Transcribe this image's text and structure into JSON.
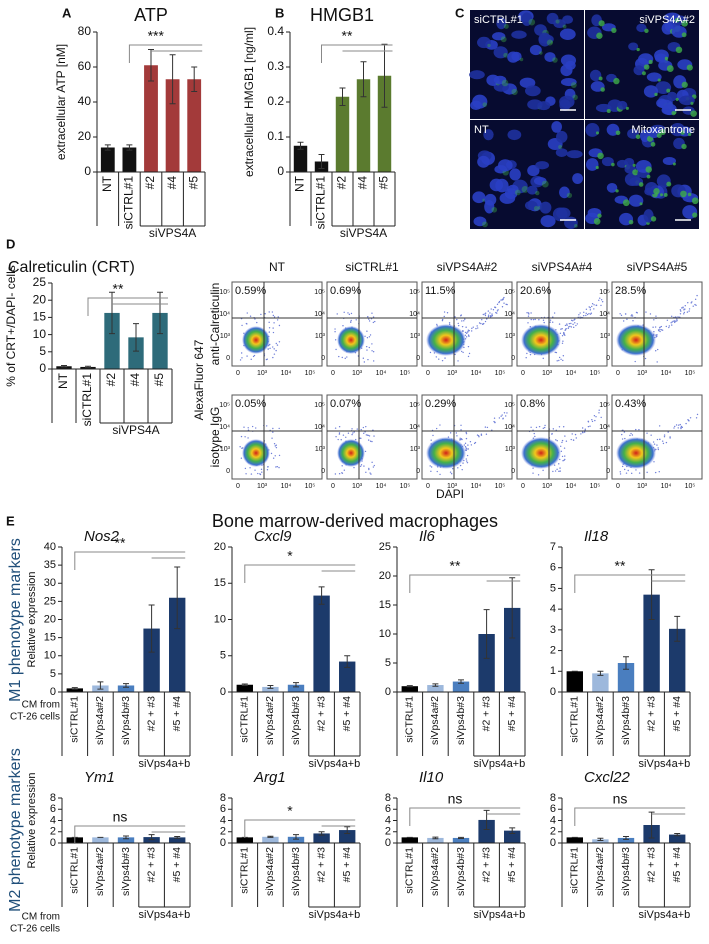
{
  "panels": [
    "A",
    "B",
    "C",
    "D",
    "E"
  ],
  "micrographs": {
    "labels": [
      "siCTRL#1",
      "siVPS4A#2",
      "NT",
      "Mitoxantrone"
    ]
  },
  "flow": {
    "columns": [
      "NT",
      "siCTRL#1",
      "siVPS4A#2",
      "siVPS4A#4",
      "siVPS4A#5"
    ],
    "rows": [
      "anti-Calreticulin",
      "isotype IgG"
    ],
    "ylabel": "AlexaFluor 647",
    "xlabel": "DAPI",
    "ticks": [
      "0",
      "10³",
      "10⁴",
      "10⁵"
    ],
    "percentages": [
      [
        "0.59%",
        "0.69%",
        "11.5%",
        "20.6%",
        "28.5%"
      ],
      [
        "0.05%",
        "0.07%",
        "0.29%",
        "0.8%",
        "0.43%"
      ]
    ]
  },
  "macrophages": {
    "title": "Bone marrow-derived macrophages",
    "rows": [
      "M1 phenotype markers",
      "M2 phenotype markers"
    ],
    "cm_label": [
      "CM from",
      "CT-26 cells"
    ]
  },
  "chart_data": [
    {
      "type": "bar",
      "title": "ATP",
      "ylabel": "extracellular ATP [nM]",
      "categories": [
        "NT",
        "siCTRL#1",
        "#2",
        "#4",
        "#5"
      ],
      "group_label": "siVPS4A",
      "values": [
        14,
        14,
        61,
        53,
        53
      ],
      "errors": [
        1.5,
        1.5,
        9,
        14,
        7
      ],
      "colors": [
        "#111111",
        "#111111",
        "#a33a3a",
        "#a33a3a",
        "#a33a3a"
      ],
      "ylim": [
        0,
        80
      ],
      "yticks": [
        0,
        20,
        40,
        60,
        80
      ],
      "annotation": "***"
    },
    {
      "type": "bar",
      "title": "HMGB1",
      "ylabel": "extracellular HMGB1 [ng/ml]",
      "categories": [
        "NT",
        "siCTRL#1",
        "#2",
        "#4",
        "#5"
      ],
      "group_label": "siVPS4A",
      "values": [
        0.075,
        0.03,
        0.215,
        0.265,
        0.275
      ],
      "errors": [
        0.01,
        0.02,
        0.025,
        0.05,
        0.09
      ],
      "colors": [
        "#111111",
        "#111111",
        "#5b7b2f",
        "#5b7b2f",
        "#5b7b2f"
      ],
      "ylim": [
        0,
        0.4
      ],
      "yticks": [
        0,
        0.1,
        0.2,
        0.3,
        0.4
      ],
      "annotation": "**"
    },
    {
      "type": "bar",
      "title": "Calreticulin (CRT)",
      "ylabel": "% of CRT+/DAPI- cells",
      "categories": [
        "NT",
        "siCTRL#1",
        "#2",
        "#4",
        "#5"
      ],
      "group_label": "siVPS4A",
      "values": [
        0.8,
        0.6,
        16.3,
        9.2,
        16.3
      ],
      "errors": [
        0.2,
        0.2,
        6,
        4,
        6
      ],
      "colors": [
        "#111111",
        "#111111",
        "#2e6b7a",
        "#2e6b7a",
        "#2e6b7a"
      ],
      "ylim": [
        0,
        25
      ],
      "yticks": [
        0,
        5,
        10,
        15,
        20,
        25
      ],
      "annotation": "**"
    },
    {
      "type": "bar",
      "title": "Nos2",
      "ylabel": "Relative expression",
      "categories": [
        "siCTRL#1",
        "siVps4a#2",
        "siVps4b#3",
        "#2 + #3",
        "#5 + #4"
      ],
      "group_label": "siVps4a+b",
      "values": [
        1,
        1.8,
        1.8,
        17.5,
        26
      ],
      "errors": [
        0.2,
        1,
        0.5,
        6.5,
        8.5
      ],
      "colors": [
        "#000000",
        "#9db8dc",
        "#4a7ebf",
        "#1c3a6b",
        "#1c3a6b"
      ],
      "ylim": [
        0,
        40
      ],
      "yticks": [
        0,
        5,
        10,
        15,
        20,
        25,
        30,
        35,
        40
      ],
      "annotation": "**"
    },
    {
      "type": "bar",
      "title": "Cxcl9",
      "categories": [
        "siCTRL#1",
        "siVps4a#2",
        "siVps4b#3",
        "#2 + #3",
        "#5 + #4"
      ],
      "group_label": "siVps4a+b",
      "values": [
        1,
        0.7,
        1,
        13.3,
        4.2
      ],
      "errors": [
        0.1,
        0.2,
        0.3,
        1.2,
        0.8
      ],
      "colors": [
        "#000000",
        "#9db8dc",
        "#4a7ebf",
        "#1c3a6b",
        "#1c3a6b"
      ],
      "ylim": [
        0,
        20
      ],
      "yticks": [
        0,
        5,
        10,
        15,
        20
      ],
      "annotation": "*"
    },
    {
      "type": "bar",
      "title": "Il6",
      "categories": [
        "siCTRL#1",
        "siVps4a#2",
        "siVps4b#3",
        "#2 + #3",
        "#5 + #4"
      ],
      "group_label": "siVps4a+b",
      "values": [
        1,
        1.2,
        1.8,
        10,
        14.5
      ],
      "errors": [
        0.1,
        0.2,
        0.3,
        4.2,
        5.2
      ],
      "colors": [
        "#000000",
        "#9db8dc",
        "#4a7ebf",
        "#1c3a6b",
        "#1c3a6b"
      ],
      "ylim": [
        0,
        25
      ],
      "yticks": [
        0,
        5,
        10,
        15,
        20,
        25
      ],
      "annotation": "**"
    },
    {
      "type": "bar",
      "title": "Il18",
      "categories": [
        "siCTRL#1",
        "siVps4a#2",
        "siVps4b#3",
        "#2 + #3",
        "#5 + #4"
      ],
      "group_label": "siVps4a+b",
      "values": [
        1,
        0.9,
        1.4,
        4.7,
        3.05
      ],
      "errors": [
        0,
        0.1,
        0.3,
        1.2,
        0.6
      ],
      "colors": [
        "#000000",
        "#9db8dc",
        "#4a7ebf",
        "#1c3a6b",
        "#1c3a6b"
      ],
      "ylim": [
        0,
        7
      ],
      "yticks": [
        0,
        1,
        2,
        3,
        4,
        5,
        6,
        7
      ],
      "annotation": "**"
    },
    {
      "type": "bar",
      "title": "Ym1",
      "ylabel": "Relative expression",
      "categories": [
        "siCTRL#1",
        "siVps4a#2",
        "siVps4b#3",
        "#2 + #3",
        "#5 + #4"
      ],
      "group_label": "siVps4a+b",
      "values": [
        1,
        1,
        1,
        1.05,
        1
      ],
      "errors": [
        0,
        0,
        0.25,
        0.45,
        0.15
      ],
      "colors": [
        "#000000",
        "#9db8dc",
        "#4a7ebf",
        "#1c3a6b",
        "#1c3a6b"
      ],
      "ylim": [
        0,
        8
      ],
      "yticks": [
        0,
        2,
        4,
        6,
        8
      ],
      "annotation": "ns"
    },
    {
      "type": "bar",
      "title": "Arg1",
      "categories": [
        "siCTRL#1",
        "siVps4a#2",
        "siVps4b#3",
        "#2 + #3",
        "#5 + #4"
      ],
      "group_label": "siVps4a+b",
      "values": [
        1,
        1.1,
        1.1,
        1.7,
        2.3
      ],
      "errors": [
        0,
        0.1,
        0.4,
        0.3,
        0.6
      ],
      "colors": [
        "#000000",
        "#9db8dc",
        "#4a7ebf",
        "#1c3a6b",
        "#1c3a6b"
      ],
      "ylim": [
        0,
        8
      ],
      "yticks": [
        0,
        2,
        4,
        6,
        8
      ],
      "annotation": "*"
    },
    {
      "type": "bar",
      "title": "Il10",
      "categories": [
        "siCTRL#1",
        "siVps4a#2",
        "siVps4b#3",
        "#2 + #3",
        "#5 + #4"
      ],
      "group_label": "siVps4a+b",
      "values": [
        1,
        0.9,
        0.9,
        4.1,
        2.2
      ],
      "errors": [
        0,
        0.15,
        0.1,
        1.7,
        0.5
      ],
      "colors": [
        "#000000",
        "#9db8dc",
        "#4a7ebf",
        "#1c3a6b",
        "#1c3a6b"
      ],
      "ylim": [
        0,
        8
      ],
      "yticks": [
        0,
        2,
        4,
        6,
        8
      ],
      "annotation": "ns"
    },
    {
      "type": "bar",
      "title": "Cxcl22",
      "categories": [
        "siCTRL#1",
        "siVps4a#2",
        "siVps4b#3",
        "#2 + #3",
        "#5 + #4"
      ],
      "group_label": "siVps4a+b",
      "values": [
        1,
        0.65,
        0.9,
        3.2,
        1.5
      ],
      "errors": [
        0,
        0.2,
        0.25,
        2.3,
        0.2
      ],
      "colors": [
        "#000000",
        "#9db8dc",
        "#4a7ebf",
        "#1c3a6b",
        "#1c3a6b"
      ],
      "ylim": [
        0,
        8
      ],
      "yticks": [
        0,
        2,
        4,
        6,
        8
      ],
      "annotation": "ns"
    }
  ]
}
